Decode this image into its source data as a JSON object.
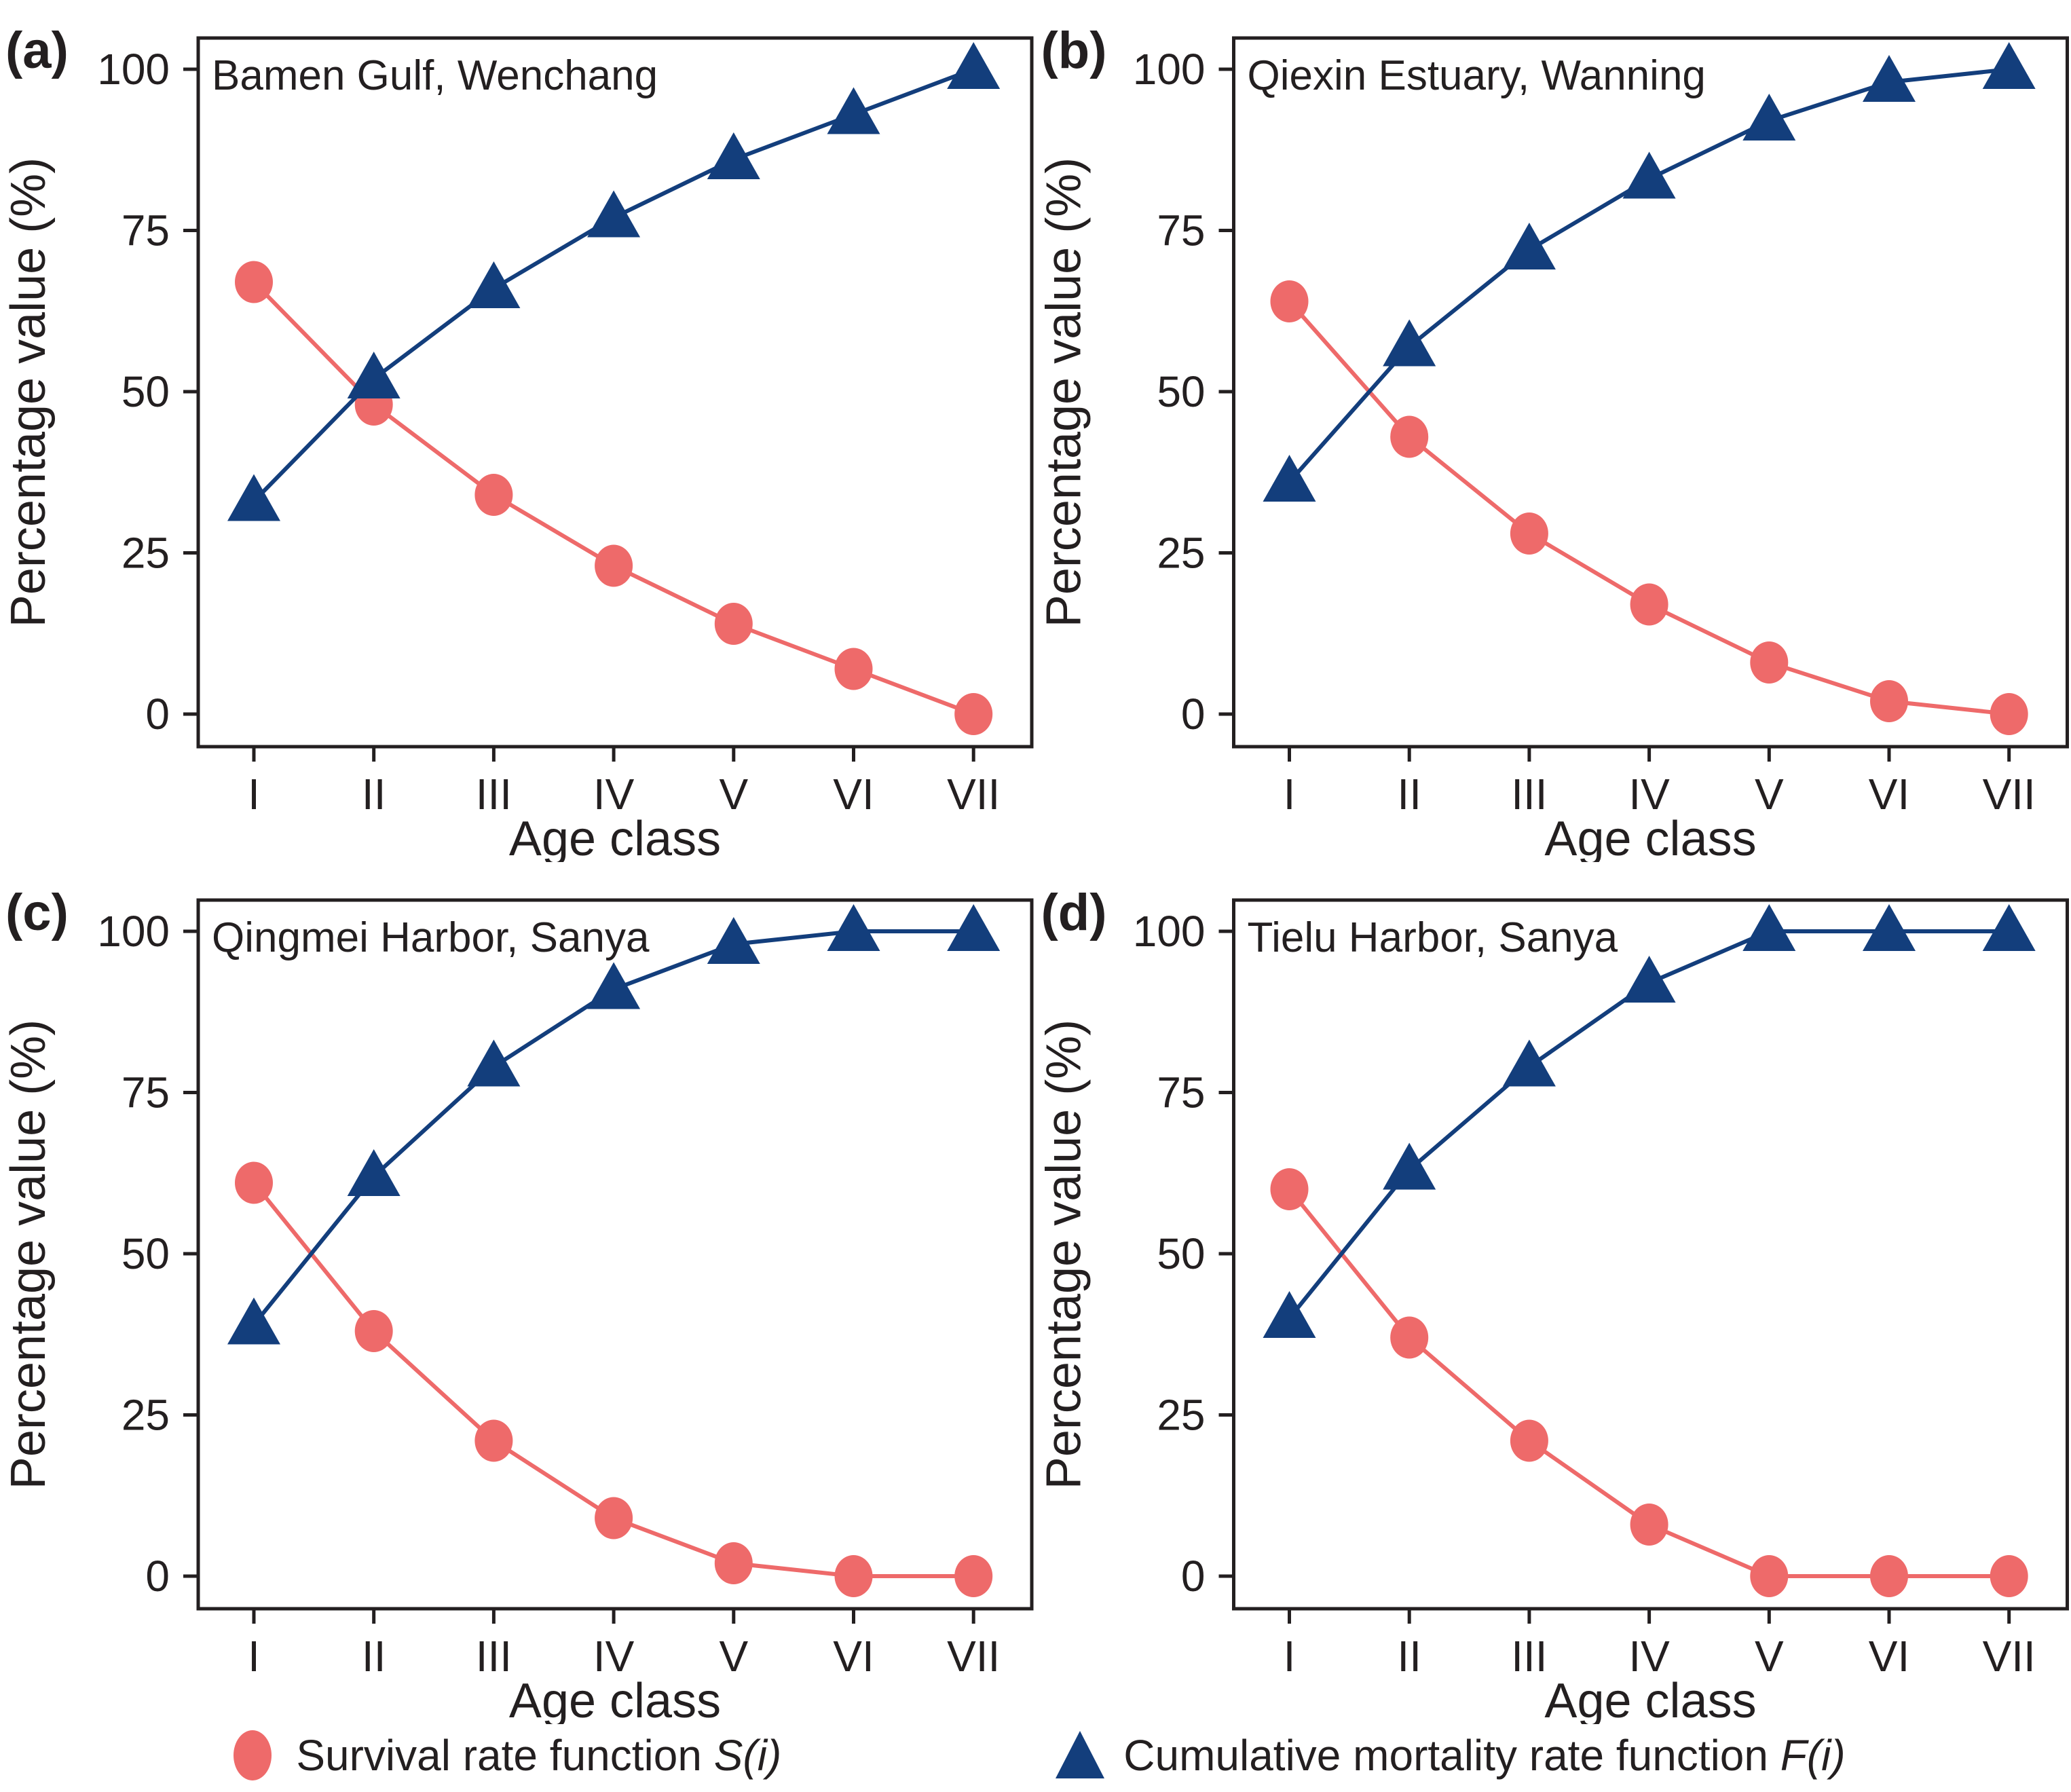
{
  "figure": {
    "background": "#ffffff",
    "text_color": "#231F20",
    "axis": {
      "xlabel": "Age class",
      "ylabel": "Percentage value (%)"
    },
    "legend": [
      {
        "marker": "circle",
        "color": "#EE6A6A",
        "text": "Survival rate function ",
        "math": "S(i)"
      },
      {
        "marker": "triangle",
        "color": "#133E7C",
        "text": "Cumulative mortality rate function ",
        "math": "F(i)"
      }
    ],
    "legend_position": "bottom"
  },
  "chart_data": [
    {
      "type": "line",
      "panel_label": "(a)",
      "title": "Bamen Gulf, Wenchang",
      "categories": [
        "I",
        "II",
        "III",
        "IV",
        "V",
        "VI",
        "VII"
      ],
      "xlabel": "Age class",
      "ylabel": "Percentage value (%)",
      "ylim": [
        0,
        100
      ],
      "yticks": [
        0,
        25,
        50,
        75,
        100
      ],
      "grid": false,
      "series": [
        {
          "id": "S",
          "name": "Survival rate function S(i)",
          "marker": "circle",
          "color": "#EE6A6A",
          "values": [
            67,
            48,
            34,
            23,
            14,
            7,
            0
          ]
        },
        {
          "id": "F",
          "name": "Cumulative mortality rate function F(i)",
          "marker": "triangle",
          "color": "#133E7C",
          "values": [
            33,
            52,
            66,
            77,
            86,
            93,
            100
          ]
        }
      ]
    },
    {
      "type": "line",
      "panel_label": "(b)",
      "title": "Qiexin Estuary, Wanning",
      "categories": [
        "I",
        "II",
        "III",
        "IV",
        "V",
        "VI",
        "VII"
      ],
      "xlabel": "Age class",
      "ylabel": "Percentage value (%)",
      "ylim": [
        0,
        100
      ],
      "yticks": [
        0,
        25,
        50,
        75,
        100
      ],
      "grid": false,
      "series": [
        {
          "id": "S",
          "name": "Survival rate function S(i)",
          "marker": "circle",
          "color": "#EE6A6A",
          "values": [
            64,
            43,
            28,
            17,
            8,
            2,
            0
          ]
        },
        {
          "id": "F",
          "name": "Cumulative mortality rate function F(i)",
          "marker": "triangle",
          "color": "#133E7C",
          "values": [
            36,
            57,
            72,
            83,
            92,
            98,
            100
          ]
        }
      ]
    },
    {
      "type": "line",
      "panel_label": "(c)",
      "title": "Qingmei Harbor, Sanya",
      "categories": [
        "I",
        "II",
        "III",
        "IV",
        "V",
        "VI",
        "VII"
      ],
      "xlabel": "Age class",
      "ylabel": "Percentage value (%)",
      "ylim": [
        0,
        100
      ],
      "yticks": [
        0,
        25,
        50,
        75,
        100
      ],
      "grid": false,
      "series": [
        {
          "id": "S",
          "name": "Survival rate function S(i)",
          "marker": "circle",
          "color": "#EE6A6A",
          "values": [
            61,
            38,
            21,
            9,
            2,
            0,
            0
          ]
        },
        {
          "id": "F",
          "name": "Cumulative mortality rate function F(i)",
          "marker": "triangle",
          "color": "#133E7C",
          "values": [
            39,
            62,
            79,
            91,
            98,
            100,
            100
          ]
        }
      ]
    },
    {
      "type": "line",
      "panel_label": "(d)",
      "title": "Tielu Harbor, Sanya",
      "categories": [
        "I",
        "II",
        "III",
        "IV",
        "V",
        "VI",
        "VII"
      ],
      "xlabel": "Age class",
      "ylabel": "Percentage value (%)",
      "ylim": [
        0,
        100
      ],
      "yticks": [
        0,
        25,
        50,
        75,
        100
      ],
      "grid": false,
      "series": [
        {
          "id": "S",
          "name": "Survival rate function S(i)",
          "marker": "circle",
          "color": "#EE6A6A",
          "values": [
            60,
            37,
            21,
            8,
            0,
            0,
            0
          ]
        },
        {
          "id": "F",
          "name": "Cumulative mortality rate function F(i)",
          "marker": "triangle",
          "color": "#133E7C",
          "values": [
            40,
            63,
            79,
            92,
            100,
            100,
            100
          ]
        }
      ]
    }
  ]
}
